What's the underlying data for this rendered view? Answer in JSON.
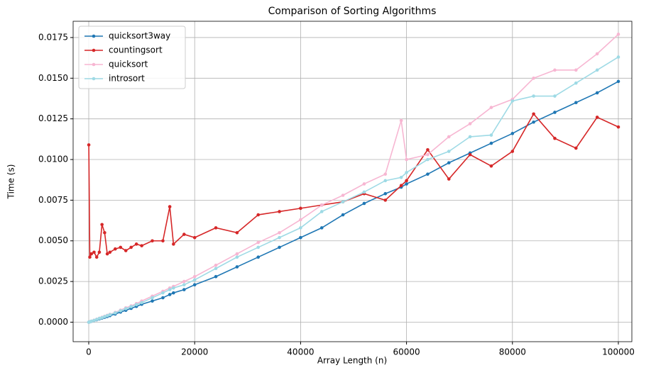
{
  "chart_data": {
    "type": "line",
    "title": "Comparison of Sorting Algorithms",
    "x_label": "Array Length (n)",
    "y_label": "Time (s)",
    "x": [
      10,
      200,
      500,
      1000,
      1500,
      2000,
      2500,
      3000,
      3500,
      4000,
      5000,
      6000,
      7000,
      8000,
      9000,
      10000,
      12000,
      14000,
      15300,
      16000,
      18000,
      20000,
      24000,
      28000,
      32000,
      36000,
      40000,
      44000,
      48000,
      52000,
      56000,
      59000,
      60000,
      64000,
      68000,
      72000,
      76000,
      80000,
      84000,
      88000,
      92000,
      96000,
      100000
    ],
    "series": [
      {
        "name": "quicksort3way",
        "color": "#1f77b4",
        "values": [
          0,
          2e-05,
          5e-05,
          0.0001,
          0.00015,
          0.0002,
          0.00025,
          0.0003,
          0.00035,
          0.0004,
          0.0005,
          0.00062,
          0.00073,
          0.00085,
          0.00097,
          0.0011,
          0.0013,
          0.0015,
          0.0017,
          0.0018,
          0.002,
          0.0023,
          0.0028,
          0.0034,
          0.004,
          0.0046,
          0.0052,
          0.0058,
          0.0066,
          0.0073,
          0.0079,
          0.0083,
          0.0085,
          0.0091,
          0.0098,
          0.0104,
          0.011,
          0.0116,
          0.0123,
          0.0129,
          0.0135,
          0.0141,
          0.0148
        ]
      },
      {
        "name": "countingsort",
        "color": "#d62728",
        "values": [
          0.0109,
          0.004,
          0.0042,
          0.0043,
          0.004,
          0.0043,
          0.006,
          0.0055,
          0.0042,
          0.0043,
          0.0045,
          0.0046,
          0.0044,
          0.0046,
          0.0048,
          0.0047,
          0.005,
          0.005,
          0.0071,
          0.0048,
          0.0054,
          0.0052,
          0.0058,
          0.0055,
          0.0066,
          0.0068,
          0.007,
          0.0072,
          0.0074,
          0.0079,
          0.0075,
          0.0084,
          0.0087,
          0.0106,
          0.0088,
          0.0103,
          0.0096,
          0.0105,
          0.0128,
          0.0113,
          0.0107,
          0.0126,
          0.012
        ]
      },
      {
        "name": "quicksort",
        "color": "#f7b6d2",
        "values": [
          0,
          2e-05,
          6e-05,
          0.00012,
          0.00018,
          0.00024,
          0.0003,
          0.00036,
          0.00042,
          0.00048,
          0.0006,
          0.00074,
          0.00088,
          0.001,
          0.00114,
          0.0013,
          0.0016,
          0.0019,
          0.0021,
          0.0022,
          0.0025,
          0.0028,
          0.0035,
          0.0042,
          0.0049,
          0.0055,
          0.0063,
          0.0072,
          0.0078,
          0.0085,
          0.0091,
          0.0124,
          0.01,
          0.0103,
          0.0114,
          0.0122,
          0.0132,
          0.0137,
          0.015,
          0.0155,
          0.0155,
          0.0165,
          0.0177
        ]
      },
      {
        "name": "introsort",
        "color": "#9edae5",
        "values": [
          0,
          2e-05,
          6e-05,
          0.00011,
          0.00017,
          0.00023,
          0.00028,
          0.00034,
          0.0004,
          0.00046,
          0.00057,
          0.0007,
          0.00083,
          0.00095,
          0.00108,
          0.0012,
          0.0015,
          0.0018,
          0.002,
          0.0021,
          0.0023,
          0.0026,
          0.0033,
          0.004,
          0.0046,
          0.0052,
          0.0058,
          0.0068,
          0.0074,
          0.008,
          0.0087,
          0.0089,
          0.0092,
          0.01,
          0.0105,
          0.0114,
          0.0115,
          0.0136,
          0.0139,
          0.0139,
          0.0147,
          0.0155,
          0.0163
        ]
      }
    ],
    "xlim": [
      -2950,
      102550
    ],
    "xticks": [
      0,
      20000,
      40000,
      60000,
      80000,
      100000
    ],
    "ylim": [
      -0.0012,
      0.0185
    ],
    "yticks": [
      {
        "value": 0,
        "label": "0.0000"
      },
      {
        "value": 0.0025,
        "label": "0.0025"
      },
      {
        "value": 0.005,
        "label": "0.0050"
      },
      {
        "value": 0.0075,
        "label": "0.0075"
      },
      {
        "value": 0.01,
        "label": "0.0100"
      },
      {
        "value": 0.0125,
        "label": "0.0125"
      },
      {
        "value": 0.015,
        "label": "0.0150"
      },
      {
        "value": 0.0175,
        "label": "0.0175"
      }
    ],
    "grid": true,
    "legend": "upper-left"
  }
}
